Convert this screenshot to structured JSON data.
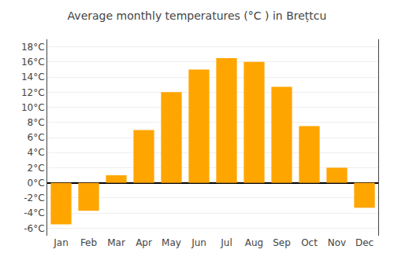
{
  "chart_data": {
    "type": "bar",
    "title": "Average monthly temperatures (°C ) in Brețtcu",
    "categories": [
      "Jan",
      "Feb",
      "Mar",
      "Apr",
      "May",
      "Jun",
      "Jul",
      "Aug",
      "Sep",
      "Oct",
      "Nov",
      "Dec"
    ],
    "values": [
      -5.5,
      -3.7,
      1.0,
      7.0,
      12.0,
      15.0,
      16.5,
      16.0,
      12.7,
      7.5,
      2.0,
      -3.3
    ],
    "color": "#FFA500",
    "ylim": [
      -7,
      19
    ],
    "yticks": [
      {
        "value": -6,
        "label": "-6°C"
      },
      {
        "value": -4,
        "label": "-4°C"
      },
      {
        "value": -2,
        "label": "-2°C"
      },
      {
        "value": 0,
        "label": "0°C"
      },
      {
        "value": 2,
        "label": "2°C"
      },
      {
        "value": 4,
        "label": "4°C"
      },
      {
        "value": 6,
        "label": "6°C"
      },
      {
        "value": 8,
        "label": "8°C"
      },
      {
        "value": 10,
        "label": "10°C"
      },
      {
        "value": 12,
        "label": "12°C"
      },
      {
        "value": 14,
        "label": "14°C"
      },
      {
        "value": 16,
        "label": "16°C"
      },
      {
        "value": 18,
        "label": "18°C"
      }
    ],
    "grid": true
  }
}
